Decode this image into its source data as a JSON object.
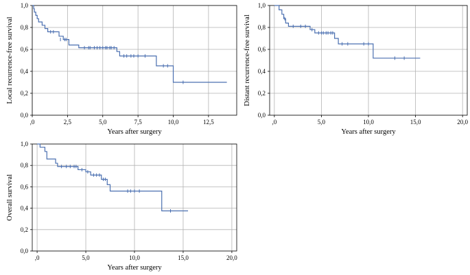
{
  "colors": {
    "curve": "#4a6fb0",
    "grid": "#b3b3b3",
    "frame": "#000000"
  },
  "chart_data": [
    {
      "type": "line",
      "title": "",
      "xlabel": "Years after surgery",
      "ylabel": "Local recurrence-free survival",
      "xlim": [
        0,
        14.5
      ],
      "ylim": [
        0,
        1.0
      ],
      "x_ticks": [
        0,
        2.5,
        5.0,
        7.5,
        10.0,
        12.5
      ],
      "x_tick_labels": [
        ",0",
        "2,5",
        "5,0",
        "7,5",
        "10,0",
        "12,5"
      ],
      "y_ticks": [
        0,
        0.2,
        0.4,
        0.6,
        0.8,
        1.0
      ],
      "y_tick_labels": [
        "0,0",
        "0,2",
        "0,4",
        "0,6",
        "0,8",
        "1,0"
      ],
      "grid": true,
      "series": [
        {
          "name": "Local recurrence-free survival",
          "steps": [
            [
              0,
              1.0
            ],
            [
              0.1,
              0.97
            ],
            [
              0.15,
              0.94
            ],
            [
              0.25,
              0.91
            ],
            [
              0.35,
              0.88
            ],
            [
              0.45,
              0.85
            ],
            [
              0.7,
              0.82
            ],
            [
              0.9,
              0.79
            ],
            [
              1.1,
              0.76
            ],
            [
              1.9,
              0.72
            ],
            [
              2.2,
              0.69
            ],
            [
              2.6,
              0.64
            ],
            [
              3.3,
              0.615
            ],
            [
              6.0,
              0.58
            ],
            [
              6.2,
              0.54
            ],
            [
              8.8,
              0.45
            ],
            [
              10.0,
              0.3
            ],
            [
              13.8,
              0.3
            ]
          ],
          "censored": [
            [
              1.3,
              0.76
            ],
            [
              1.5,
              0.76
            ],
            [
              2.0,
              0.69
            ],
            [
              2.3,
              0.69
            ],
            [
              2.4,
              0.69
            ],
            [
              3.7,
              0.615
            ],
            [
              4.0,
              0.615
            ],
            [
              4.1,
              0.615
            ],
            [
              4.4,
              0.615
            ],
            [
              4.6,
              0.615
            ],
            [
              4.8,
              0.615
            ],
            [
              5.0,
              0.615
            ],
            [
              5.2,
              0.615
            ],
            [
              5.3,
              0.615
            ],
            [
              5.5,
              0.615
            ],
            [
              5.6,
              0.615
            ],
            [
              5.8,
              0.615
            ],
            [
              6.5,
              0.54
            ],
            [
              6.7,
              0.54
            ],
            [
              7.0,
              0.54
            ],
            [
              7.2,
              0.54
            ],
            [
              7.5,
              0.54
            ],
            [
              8.0,
              0.54
            ],
            [
              9.3,
              0.45
            ],
            [
              9.6,
              0.45
            ],
            [
              10.7,
              0.3
            ]
          ]
        }
      ]
    },
    {
      "type": "line",
      "title": "",
      "xlabel": "Years after surgery",
      "ylabel": "Distant recurrence-free survival",
      "xlim": [
        -0.5,
        20.5
      ],
      "ylim": [
        0,
        1.0
      ],
      "x_ticks": [
        0,
        5.0,
        10.0,
        15.0,
        20.0
      ],
      "x_tick_labels": [
        ",0",
        "5,0",
        "10,0",
        "15,0",
        "20,0"
      ],
      "y_ticks": [
        0,
        0.2,
        0.4,
        0.6,
        0.8,
        1.0
      ],
      "y_tick_labels": [
        "0,0",
        "0,2",
        "0,4",
        "0,6",
        "0,8",
        "1,0"
      ],
      "grid": true,
      "series": [
        {
          "name": "Distant recurrence-free survival",
          "steps": [
            [
              0,
              1.0
            ],
            [
              0.5,
              0.96
            ],
            [
              0.8,
              0.92
            ],
            [
              1.0,
              0.88
            ],
            [
              1.2,
              0.84
            ],
            [
              1.5,
              0.81
            ],
            [
              3.8,
              0.78
            ],
            [
              4.3,
              0.75
            ],
            [
              6.4,
              0.7
            ],
            [
              6.8,
              0.65
            ],
            [
              10.5,
              0.52
            ],
            [
              15.5,
              0.52
            ]
          ],
          "censored": [
            [
              1.1,
              0.88
            ],
            [
              2.0,
              0.81
            ],
            [
              2.8,
              0.81
            ],
            [
              3.3,
              0.81
            ],
            [
              4.0,
              0.78
            ],
            [
              4.7,
              0.75
            ],
            [
              5.0,
              0.75
            ],
            [
              5.2,
              0.75
            ],
            [
              5.5,
              0.75
            ],
            [
              5.7,
              0.75
            ],
            [
              6.0,
              0.75
            ],
            [
              6.2,
              0.75
            ],
            [
              7.2,
              0.65
            ],
            [
              7.8,
              0.65
            ],
            [
              9.5,
              0.65
            ],
            [
              10.0,
              0.65
            ],
            [
              12.8,
              0.52
            ],
            [
              13.8,
              0.52
            ]
          ]
        }
      ]
    },
    {
      "type": "line",
      "title": "",
      "xlabel": "Years after surgery",
      "ylabel": "Overall survival",
      "xlim": [
        -0.5,
        20.5
      ],
      "ylim": [
        0,
        1.0
      ],
      "x_ticks": [
        0,
        5.0,
        10.0,
        15.0,
        20.0
      ],
      "x_tick_labels": [
        ",0",
        "5,0",
        "10,0",
        "15,0",
        "20,0"
      ],
      "y_ticks": [
        0,
        0.2,
        0.4,
        0.6,
        0.8,
        1.0
      ],
      "y_tick_labels": [
        "0,0",
        "0,2",
        "0,4",
        "0,6",
        "0,8",
        "1,0"
      ],
      "grid": true,
      "series": [
        {
          "name": "Overall survival",
          "steps": [
            [
              0,
              1.0
            ],
            [
              0.3,
              0.97
            ],
            [
              0.8,
              0.93
            ],
            [
              1.0,
              0.86
            ],
            [
              1.9,
              0.82
            ],
            [
              2.1,
              0.79
            ],
            [
              4.2,
              0.76
            ],
            [
              5.0,
              0.74
            ],
            [
              5.5,
              0.71
            ],
            [
              6.6,
              0.67
            ],
            [
              7.2,
              0.62
            ],
            [
              7.5,
              0.56
            ],
            [
              12.8,
              0.375
            ],
            [
              15.5,
              0.375
            ]
          ],
          "censored": [
            [
              2.5,
              0.79
            ],
            [
              3.0,
              0.79
            ],
            [
              3.4,
              0.79
            ],
            [
              3.8,
              0.79
            ],
            [
              4.0,
              0.79
            ],
            [
              4.6,
              0.76
            ],
            [
              5.2,
              0.74
            ],
            [
              5.8,
              0.71
            ],
            [
              6.1,
              0.71
            ],
            [
              6.4,
              0.71
            ],
            [
              6.8,
              0.67
            ],
            [
              7.0,
              0.67
            ],
            [
              9.3,
              0.56
            ],
            [
              9.6,
              0.56
            ],
            [
              10.0,
              0.56
            ],
            [
              10.5,
              0.56
            ],
            [
              13.7,
              0.375
            ]
          ]
        }
      ]
    }
  ]
}
